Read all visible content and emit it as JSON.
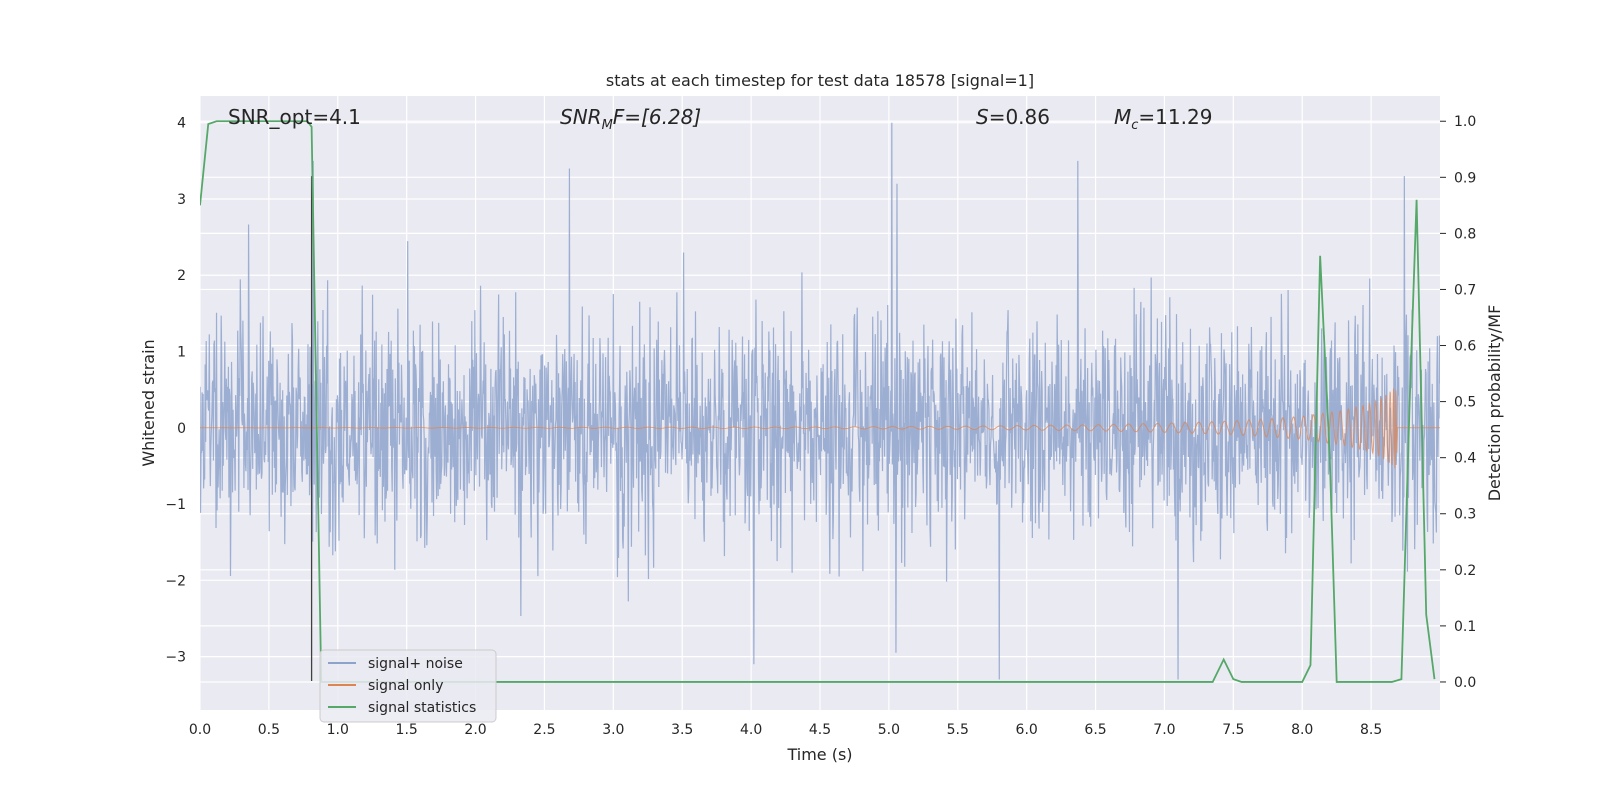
{
  "chart_data": {
    "type": "line",
    "title": "stats at each timestep for test data 18578 [signal=1]",
    "xlabel": "Time (s)",
    "ylabel_left": "Whitened strain",
    "ylabel_right": "Detection probability/MF",
    "xlim": [
      0.0,
      9.0
    ],
    "ylim_left": [
      -3.7,
      4.35
    ],
    "ylim_right": [
      -0.05,
      1.045
    ],
    "x_ticks": [
      "0.0",
      "0.5",
      "1.0",
      "1.5",
      "2.0",
      "2.5",
      "3.0",
      "3.5",
      "4.0",
      "4.5",
      "5.0",
      "5.5",
      "6.0",
      "6.5",
      "7.0",
      "7.5",
      "8.0",
      "8.5"
    ],
    "y_ticks_left": [
      "−3",
      "−2",
      "−1",
      "0",
      "1",
      "2",
      "3",
      "4"
    ],
    "y_ticks_right": [
      "0.0",
      "0.1",
      "0.2",
      "0.3",
      "0.4",
      "0.5",
      "0.6",
      "0.7",
      "0.8",
      "0.9",
      "1.0"
    ],
    "grid": true,
    "legend_position": "lower-left",
    "annotations": {
      "snr_opt": "SNR_opt=4.1",
      "snr_mf_prefix": "SNR",
      "snr_mf_sub": "M",
      "snr_mf_rest": "F=[6.28]",
      "s_sym": "S",
      "s_rest": "=0.86",
      "mc_sym": "M",
      "mc_sub": "c",
      "mc_rest": "=11.29"
    },
    "vertical_marker_x": 0.81,
    "series": [
      {
        "name": "signal+ noise",
        "color": "#8ea3cc",
        "description_values": "whitened noisy strain, approx. within [-2.5, 2.8], with spikes up to 4.0 near t=5.02 and down to -3.3 near t=5.8 and t=7.1",
        "peaks": [
          {
            "x": 0.82,
            "y": 3.5
          },
          {
            "x": 2.68,
            "y": 3.4
          },
          {
            "x": 5.02,
            "y": 4.0
          },
          {
            "x": 5.06,
            "y": 3.2
          },
          {
            "x": 6.37,
            "y": 3.5
          },
          {
            "x": 8.74,
            "y": 3.3
          },
          {
            "x": 5.8,
            "y": -3.3
          },
          {
            "x": 7.1,
            "y": -3.3
          },
          {
            "x": 4.02,
            "y": -3.1
          },
          {
            "x": 5.05,
            "y": -2.95
          }
        ]
      },
      {
        "name": "signal only",
        "color": "#dd8452",
        "description_values": "chirp waveform growing in amplitude, merger near t=8.68 with peak amplitude about 0.55",
        "envelope": [
          {
            "x": 0.0,
            "y": 0.0
          },
          {
            "x": 4.5,
            "y": 0.01
          },
          {
            "x": 5.5,
            "y": 0.02
          },
          {
            "x": 6.5,
            "y": 0.04
          },
          {
            "x": 7.0,
            "y": 0.06
          },
          {
            "x": 7.5,
            "y": 0.09
          },
          {
            "x": 8.0,
            "y": 0.15
          },
          {
            "x": 8.3,
            "y": 0.23
          },
          {
            "x": 8.5,
            "y": 0.32
          },
          {
            "x": 8.6,
            "y": 0.42
          },
          {
            "x": 8.68,
            "y": 0.55
          },
          {
            "x": 8.7,
            "y": 0.0
          },
          {
            "x": 9.0,
            "y": 0.0
          }
        ]
      },
      {
        "name": "signal statistics",
        "color": "#55a868",
        "axis": "right",
        "points": [
          {
            "x": 0.0,
            "y": 0.85
          },
          {
            "x": 0.06,
            "y": 0.995
          },
          {
            "x": 0.12,
            "y": 1.0
          },
          {
            "x": 0.5,
            "y": 1.0
          },
          {
            "x": 0.78,
            "y": 1.0
          },
          {
            "x": 0.81,
            "y": 0.99
          },
          {
            "x": 0.88,
            "y": 0.0
          },
          {
            "x": 7.35,
            "y": 0.0
          },
          {
            "x": 7.43,
            "y": 0.04
          },
          {
            "x": 7.5,
            "y": 0.005
          },
          {
            "x": 7.56,
            "y": 0.0
          },
          {
            "x": 8.0,
            "y": 0.0
          },
          {
            "x": 8.06,
            "y": 0.03
          },
          {
            "x": 8.13,
            "y": 0.76
          },
          {
            "x": 8.2,
            "y": 0.4
          },
          {
            "x": 8.25,
            "y": 0.0
          },
          {
            "x": 8.65,
            "y": 0.0
          },
          {
            "x": 8.72,
            "y": 0.005
          },
          {
            "x": 8.78,
            "y": 0.5
          },
          {
            "x": 8.83,
            "y": 0.86
          },
          {
            "x": 8.9,
            "y": 0.12
          },
          {
            "x": 8.96,
            "y": 0.005
          }
        ]
      }
    ]
  }
}
